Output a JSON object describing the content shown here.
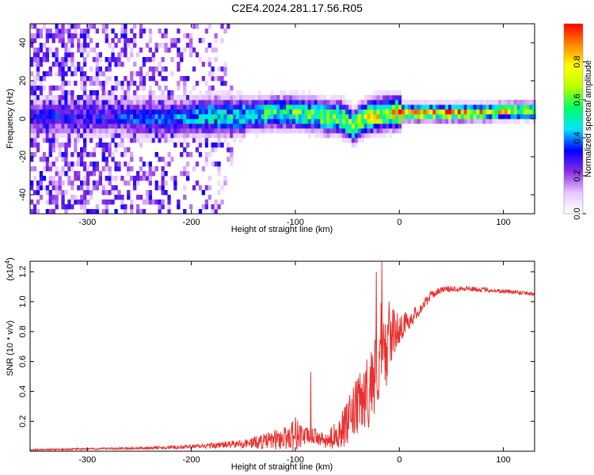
{
  "figure_title": "C2E4.2024.281.17.56.R05",
  "colorbar": {
    "label": "Normalized spectral amplitude",
    "ticks": [
      "0.0",
      "0.2",
      "0.4",
      "0.6",
      "0.8"
    ],
    "tick_values": [
      0.0,
      0.2,
      0.4,
      0.6,
      0.8
    ],
    "range": [
      0,
      1
    ],
    "colormap": [
      "#ffffff",
      "#e6c8ff",
      "#8a2be2",
      "#0000ff",
      "#00e5ff",
      "#00ff66",
      "#b8ff00",
      "#ffff00",
      "#ff8800",
      "#ff0000"
    ]
  },
  "chart_data": [
    {
      "type": "heatmap",
      "xlabel": "Height of straight line (km)",
      "ylabel": "Frequency (Hz)",
      "xlim": [
        -355,
        130
      ],
      "ylim": [
        -50,
        50
      ],
      "x_ticks": [
        -300,
        -200,
        -100,
        0,
        100
      ],
      "y_ticks": [
        -40,
        -20,
        0,
        20,
        40
      ],
      "ridge": {
        "x": [
          -280,
          -250,
          -220,
          -200,
          -180,
          -160,
          -140,
          -120,
          -100,
          -90,
          -80,
          -70,
          -60,
          -50,
          -45,
          -40,
          -30,
          -20,
          -10,
          0,
          20,
          50,
          80,
          100,
          130
        ],
        "y": [
          0,
          -1,
          -1,
          0,
          0,
          0,
          1,
          2,
          2,
          1,
          1,
          -1,
          0,
          -3,
          -6,
          -2,
          0,
          1,
          2,
          2,
          2,
          2,
          2,
          3,
          3
        ],
        "intensity": [
          0.35,
          0.4,
          0.45,
          0.5,
          0.55,
          0.55,
          0.6,
          0.65,
          0.65,
          0.7,
          0.7,
          0.75,
          0.75,
          0.8,
          0.75,
          0.8,
          0.85,
          0.85,
          0.9,
          0.95,
          0.98,
          0.95,
          0.9,
          0.85,
          0.8
        ]
      }
    },
    {
      "type": "line",
      "xlabel": "Height of straight line (km)",
      "ylabel": "SNR (10 * v/v)",
      "y_multiplier": "(x10",
      "y_multiplier_exp": "4",
      "y_multiplier_close": ")",
      "xlim": [
        -355,
        130
      ],
      "ylim": [
        0,
        1.27
      ],
      "x_ticks": [
        -300,
        -200,
        -100,
        0,
        100
      ],
      "y_ticks": [
        0.2,
        0.4,
        0.6,
        0.8,
        1.0,
        1.2
      ],
      "y_tick_labels": [
        "0.2",
        "0.4",
        "0.6",
        "0.8",
        "1.0",
        "1.2"
      ],
      "color": "#e8312f",
      "series": [
        {
          "x": [
            -355,
            -300,
            -250,
            -200,
            -175,
            -150,
            -125,
            -110,
            -100,
            -90,
            -80,
            -70,
            -60,
            -50,
            -45,
            -40,
            -35,
            -30,
            -25,
            -20,
            -17,
            -15,
            -10,
            -5,
            0,
            5,
            10,
            20,
            30,
            40,
            60,
            80,
            100,
            120,
            130
          ],
          "values": [
            0.01,
            0.015,
            0.02,
            0.03,
            0.04,
            0.05,
            0.07,
            0.09,
            0.12,
            0.1,
            0.1,
            0.06,
            0.12,
            0.18,
            0.25,
            0.3,
            0.35,
            0.4,
            0.5,
            0.6,
            0.7,
            0.6,
            0.75,
            0.8,
            0.82,
            0.85,
            0.88,
            0.95,
            1.04,
            1.08,
            1.09,
            1.08,
            1.07,
            1.06,
            1.05
          ],
          "noise": [
            0.005,
            0.006,
            0.008,
            0.015,
            0.02,
            0.03,
            0.06,
            0.08,
            0.12,
            0.06,
            0.05,
            0.05,
            0.1,
            0.15,
            0.18,
            0.2,
            0.22,
            0.25,
            0.28,
            0.3,
            0.35,
            0.3,
            0.2,
            0.15,
            0.1,
            0.08,
            0.06,
            0.04,
            0.03,
            0.02,
            0.02,
            0.015,
            0.015,
            0.015,
            0.015
          ]
        }
      ],
      "spike_peaks": [
        {
          "x": -17,
          "y": 1.27
        },
        {
          "x": -85,
          "y": 0.53
        },
        {
          "x": -22,
          "y": 1.2
        },
        {
          "x": -10,
          "y": 1.0
        }
      ]
    }
  ]
}
